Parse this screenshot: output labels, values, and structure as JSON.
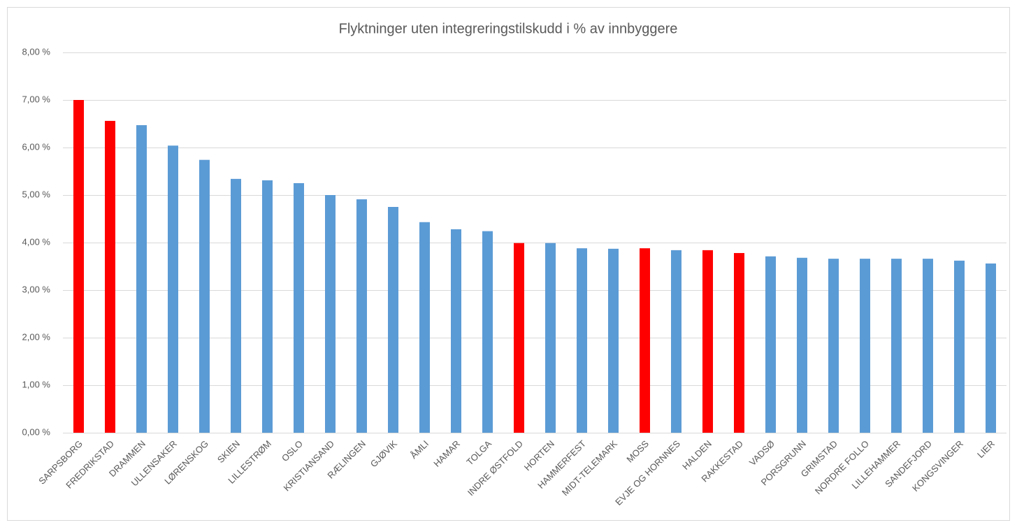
{
  "chart_data": {
    "type": "bar",
    "title": "Flyktninger uten integreringstilskudd i % av innbyggere",
    "categories": [
      "SARPSBORG",
      "FREDRIKSTAD",
      "DRAMMEN",
      "ULLENSAKER",
      "LØRENSKOG",
      "SKIEN",
      "LILLESTRØM",
      "OSLO",
      "KRISTIANSAND",
      "RÆLINGEN",
      "GJØVIK",
      "ÅMLI",
      "HAMAR",
      "TOLGA",
      "INDRE ØSTFOLD",
      "HORTEN",
      "HAMMERFEST",
      "MIDT-TELEMARK",
      "MOSS",
      "EVJE OG HORNNES",
      "HALDEN",
      "RAKKESTAD",
      "VADSØ",
      "PORSGRUNN",
      "GRIMSTAD",
      "NORDRE FOLLO",
      "LILLEHAMMER",
      "SANDEFJORD",
      "KONGSVINGER",
      "LIER"
    ],
    "values": [
      7.0,
      6.56,
      6.47,
      6.04,
      5.74,
      5.34,
      5.31,
      5.25,
      5.0,
      4.91,
      4.75,
      4.43,
      4.28,
      4.24,
      3.99,
      3.99,
      3.88,
      3.87,
      3.88,
      3.84,
      3.84,
      3.78,
      3.71,
      3.68,
      3.66,
      3.66,
      3.66,
      3.66,
      3.62,
      3.56
    ],
    "colors": [
      "#ff0000",
      "#ff0000",
      "#5b9bd5",
      "#5b9bd5",
      "#5b9bd5",
      "#5b9bd5",
      "#5b9bd5",
      "#5b9bd5",
      "#5b9bd5",
      "#5b9bd5",
      "#5b9bd5",
      "#5b9bd5",
      "#5b9bd5",
      "#5b9bd5",
      "#ff0000",
      "#5b9bd5",
      "#5b9bd5",
      "#5b9bd5",
      "#ff0000",
      "#5b9bd5",
      "#ff0000",
      "#ff0000",
      "#5b9bd5",
      "#5b9bd5",
      "#5b9bd5",
      "#5b9bd5",
      "#5b9bd5",
      "#5b9bd5",
      "#5b9bd5",
      "#5b9bd5"
    ],
    "ylim": [
      0,
      8
    ],
    "yticks": [
      {
        "value": 0,
        "label": "0,00 %"
      },
      {
        "value": 1,
        "label": "1,00 %"
      },
      {
        "value": 2,
        "label": "2,00 %"
      },
      {
        "value": 3,
        "label": "3,00 %"
      },
      {
        "value": 4,
        "label": "4,00 %"
      },
      {
        "value": 5,
        "label": "5,00 %"
      },
      {
        "value": 6,
        "label": "6,00 %"
      },
      {
        "value": 7,
        "label": "7,00 %"
      },
      {
        "value": 8,
        "label": "8,00 %"
      }
    ],
    "grid": true
  }
}
